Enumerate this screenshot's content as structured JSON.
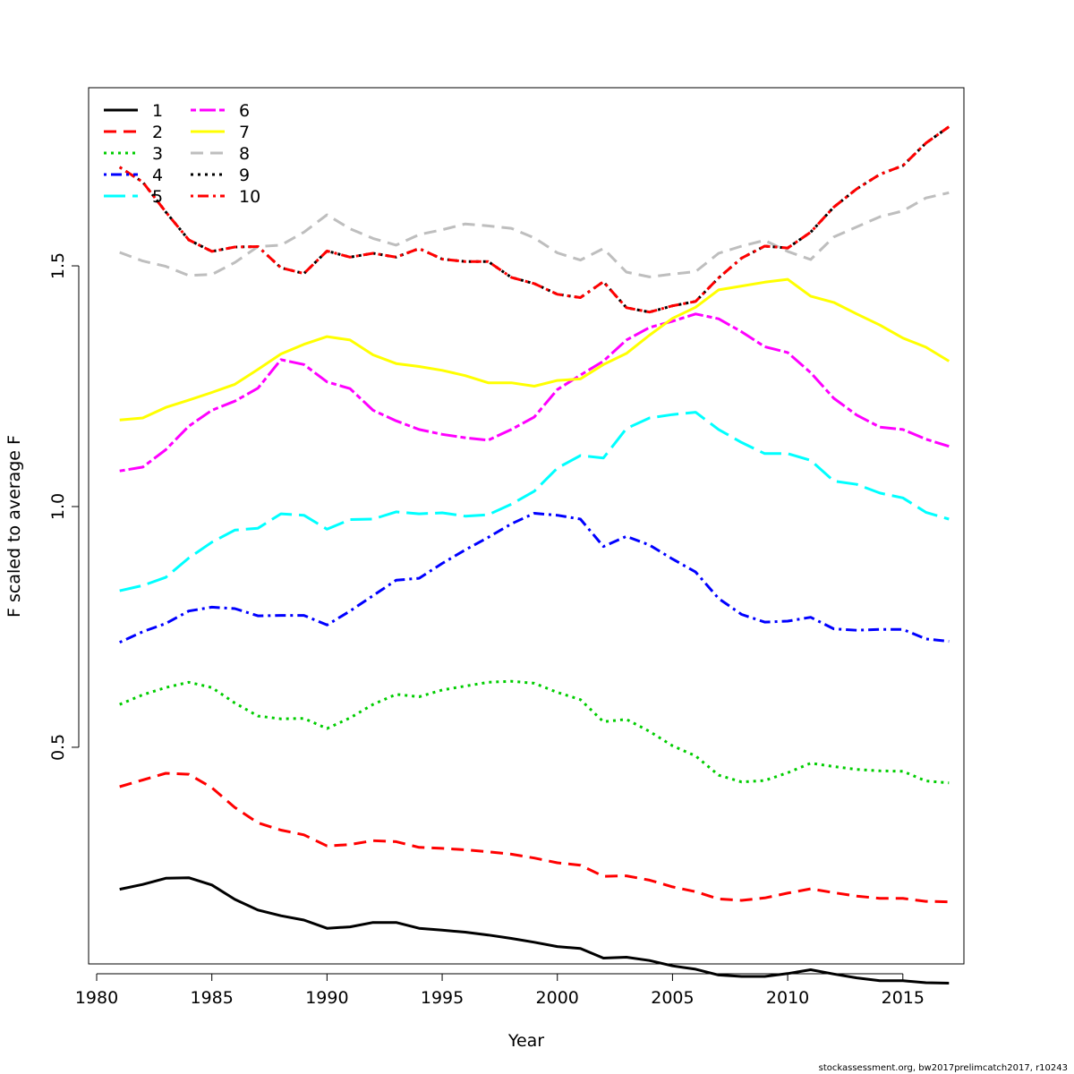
{
  "chart_data": {
    "type": "line",
    "title": "",
    "xlabel": "Year",
    "ylabel": "F scaled to average F",
    "xlim": [
      1980,
      2018
    ],
    "ylim": [
      0.05,
      1.87
    ],
    "xticks": [
      1980,
      1985,
      1990,
      1995,
      2000,
      2005,
      2010,
      2015
    ],
    "yticks": [
      0.5,
      1.0,
      1.5
    ],
    "ytick_labels": [
      "0.5",
      "1.0",
      "1.5"
    ],
    "legend_position": "top-left",
    "x": [
      1981,
      1982,
      1983,
      1984,
      1985,
      1986,
      1987,
      1988,
      1989,
      1990,
      1991,
      1992,
      1993,
      1994,
      1995,
      1996,
      1997,
      1998,
      1999,
      2000,
      2001,
      2002,
      2003,
      2004,
      2005,
      2006,
      2007,
      2008,
      2009,
      2010,
      2011,
      2012,
      2013,
      2014,
      2015,
      2016,
      2017
    ],
    "series": [
      {
        "name": "1",
        "color": "#000000",
        "dash": "solid",
        "values": [
          0.205,
          0.215,
          0.228,
          0.229,
          0.214,
          0.184,
          0.162,
          0.15,
          0.141,
          0.124,
          0.127,
          0.136,
          0.136,
          0.124,
          0.12,
          0.116,
          0.11,
          0.103,
          0.095,
          0.086,
          0.082,
          0.062,
          0.064,
          0.057,
          0.046,
          0.039,
          0.027,
          0.024,
          0.024,
          0.03,
          0.038,
          0.029,
          0.021,
          0.015,
          0.015,
          0.011,
          0.01
        ]
      },
      {
        "name": "2",
        "color": "#ff0000",
        "dash": "dashed",
        "values": [
          0.418,
          0.432,
          0.446,
          0.444,
          0.416,
          0.375,
          0.343,
          0.328,
          0.318,
          0.295,
          0.298,
          0.306,
          0.304,
          0.292,
          0.29,
          0.287,
          0.283,
          0.278,
          0.27,
          0.26,
          0.255,
          0.232,
          0.233,
          0.224,
          0.21,
          0.2,
          0.185,
          0.182,
          0.187,
          0.197,
          0.206,
          0.198,
          0.191,
          0.186,
          0.186,
          0.18,
          0.179
        ]
      },
      {
        "name": "3",
        "color": "#00cd00",
        "dash": "dotted",
        "values": [
          0.589,
          0.609,
          0.624,
          0.635,
          0.624,
          0.592,
          0.565,
          0.559,
          0.56,
          0.539,
          0.561,
          0.589,
          0.61,
          0.605,
          0.619,
          0.627,
          0.635,
          0.637,
          0.633,
          0.614,
          0.599,
          0.553,
          0.558,
          0.533,
          0.503,
          0.482,
          0.442,
          0.428,
          0.431,
          0.447,
          0.467,
          0.46,
          0.454,
          0.451,
          0.45,
          0.43,
          0.426
        ]
      },
      {
        "name": "4",
        "color": "#0000ff",
        "dash": "dashdot",
        "values": [
          0.718,
          0.74,
          0.757,
          0.783,
          0.791,
          0.788,
          0.773,
          0.774,
          0.774,
          0.754,
          0.783,
          0.815,
          0.847,
          0.851,
          0.882,
          0.91,
          0.936,
          0.964,
          0.986,
          0.982,
          0.974,
          0.917,
          0.938,
          0.92,
          0.891,
          0.864,
          0.809,
          0.776,
          0.76,
          0.762,
          0.77,
          0.746,
          0.743,
          0.745,
          0.745,
          0.725,
          0.72
        ]
      },
      {
        "name": "5",
        "color": "#00ffff",
        "dash": "longdash",
        "values": [
          0.825,
          0.836,
          0.853,
          0.893,
          0.926,
          0.951,
          0.955,
          0.985,
          0.982,
          0.953,
          0.973,
          0.974,
          0.989,
          0.985,
          0.987,
          0.98,
          0.983,
          1.005,
          1.032,
          1.08,
          1.106,
          1.101,
          1.162,
          1.184,
          1.191,
          1.196,
          1.16,
          1.133,
          1.11,
          1.11,
          1.096,
          1.053,
          1.046,
          1.028,
          1.018,
          0.988,
          0.974
        ]
      },
      {
        "name": "6",
        "color": "#ff00ff",
        "dash": "twodash",
        "values": [
          1.074,
          1.082,
          1.118,
          1.167,
          1.2,
          1.219,
          1.246,
          1.305,
          1.295,
          1.259,
          1.245,
          1.2,
          1.178,
          1.16,
          1.15,
          1.143,
          1.138,
          1.16,
          1.186,
          1.243,
          1.273,
          1.302,
          1.346,
          1.372,
          1.385,
          1.4,
          1.39,
          1.363,
          1.332,
          1.32,
          1.278,
          1.225,
          1.19,
          1.165,
          1.16,
          1.14,
          1.125
        ]
      },
      {
        "name": "7",
        "color": "#ffff00",
        "dash": "solid",
        "values": [
          1.18,
          1.184,
          1.206,
          1.221,
          1.237,
          1.254,
          1.285,
          1.317,
          1.337,
          1.353,
          1.346,
          1.315,
          1.297,
          1.291,
          1.283,
          1.272,
          1.257,
          1.257,
          1.25,
          1.262,
          1.265,
          1.295,
          1.318,
          1.356,
          1.391,
          1.414,
          1.45,
          1.458,
          1.466,
          1.472,
          1.437,
          1.424,
          1.4,
          1.377,
          1.35,
          1.331,
          1.302
        ]
      },
      {
        "name": "8",
        "color": "#bebebe",
        "dash": "dashed",
        "values": [
          1.528,
          1.51,
          1.499,
          1.48,
          1.482,
          1.507,
          1.54,
          1.543,
          1.57,
          1.606,
          1.577,
          1.557,
          1.543,
          1.565,
          1.575,
          1.587,
          1.583,
          1.578,
          1.558,
          1.527,
          1.512,
          1.536,
          1.487,
          1.477,
          1.483,
          1.488,
          1.526,
          1.541,
          1.553,
          1.53,
          1.513,
          1.56,
          1.581,
          1.602,
          1.614,
          1.641,
          1.652
        ]
      },
      {
        "name": "9",
        "color": "#000000",
        "dash": "dotted",
        "values": [
          1.705,
          1.674,
          1.612,
          1.554,
          1.53,
          1.539,
          1.54,
          1.496,
          1.484,
          1.531,
          1.518,
          1.526,
          1.518,
          1.536,
          1.514,
          1.509,
          1.509,
          1.476,
          1.463,
          1.441,
          1.434,
          1.467,
          1.413,
          1.404,
          1.417,
          1.426,
          1.475,
          1.516,
          1.541,
          1.537,
          1.57,
          1.622,
          1.66,
          1.69,
          1.708,
          1.755,
          1.789
        ]
      },
      {
        "name": "10",
        "color": "#ff0000",
        "dash": "dashdot",
        "values": [
          1.705,
          1.674,
          1.612,
          1.554,
          1.53,
          1.539,
          1.54,
          1.496,
          1.484,
          1.531,
          1.518,
          1.526,
          1.518,
          1.536,
          1.514,
          1.509,
          1.509,
          1.476,
          1.463,
          1.441,
          1.434,
          1.467,
          1.413,
          1.404,
          1.417,
          1.426,
          1.475,
          1.516,
          1.541,
          1.537,
          1.57,
          1.622,
          1.66,
          1.69,
          1.708,
          1.755,
          1.789
        ]
      }
    ]
  },
  "footer": {
    "credit": "stockassessment.org, bw2017prelimcatch2017, r10243"
  }
}
